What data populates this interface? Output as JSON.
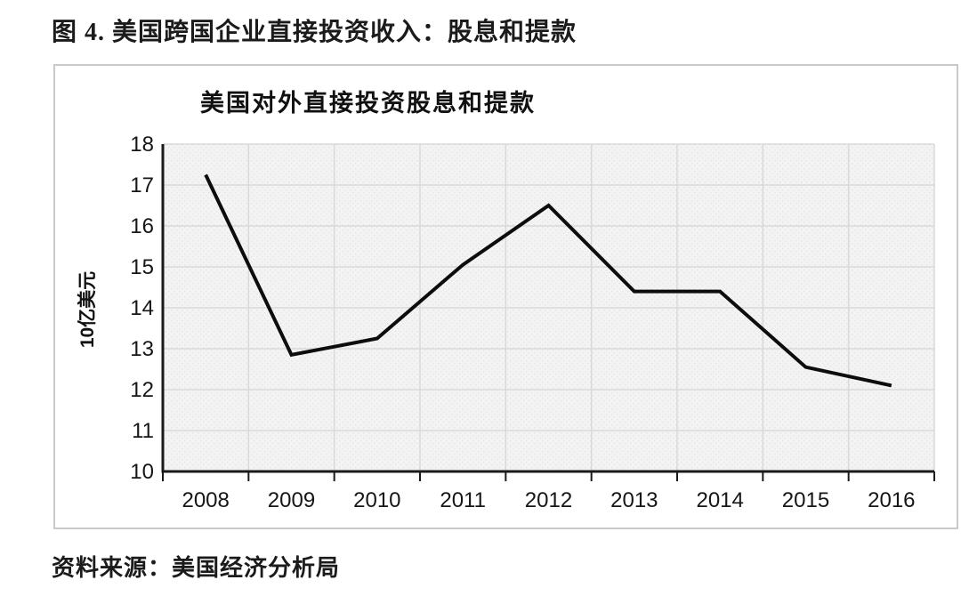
{
  "figure": {
    "title": "图 4. 美国跨国企业直接投资收入：股息和提款"
  },
  "source": {
    "text": "资料来源：美国经济分析局"
  },
  "chart_data": {
    "type": "line",
    "title": "美国对外直接投资股息和提款",
    "categories": [
      "2008",
      "2009",
      "2010",
      "2011",
      "2012",
      "2013",
      "2014",
      "2015",
      "2016"
    ],
    "series": [
      {
        "name": "美国对外直接投资股息和提款",
        "values": [
          17.25,
          12.85,
          13.25,
          15.05,
          16.5,
          14.4,
          14.4,
          12.55,
          12.1
        ]
      }
    ],
    "xlabel": "",
    "ylabel": "10亿美元",
    "ylim": [
      10,
      18
    ],
    "ytick_step": 1,
    "yticks": [
      10,
      11,
      12,
      13,
      14,
      15,
      16,
      17,
      18
    ],
    "grid": true,
    "legend_position": "none",
    "colors": {
      "line": "#0d0d0d",
      "axis": "#1a1a1a",
      "gridline": "#d9d9d9",
      "plot_background": "#f3f3f3",
      "plot_dot_texture": "#e4e4e4",
      "frame_border": "#c9c9c9",
      "text": "#161616"
    }
  }
}
